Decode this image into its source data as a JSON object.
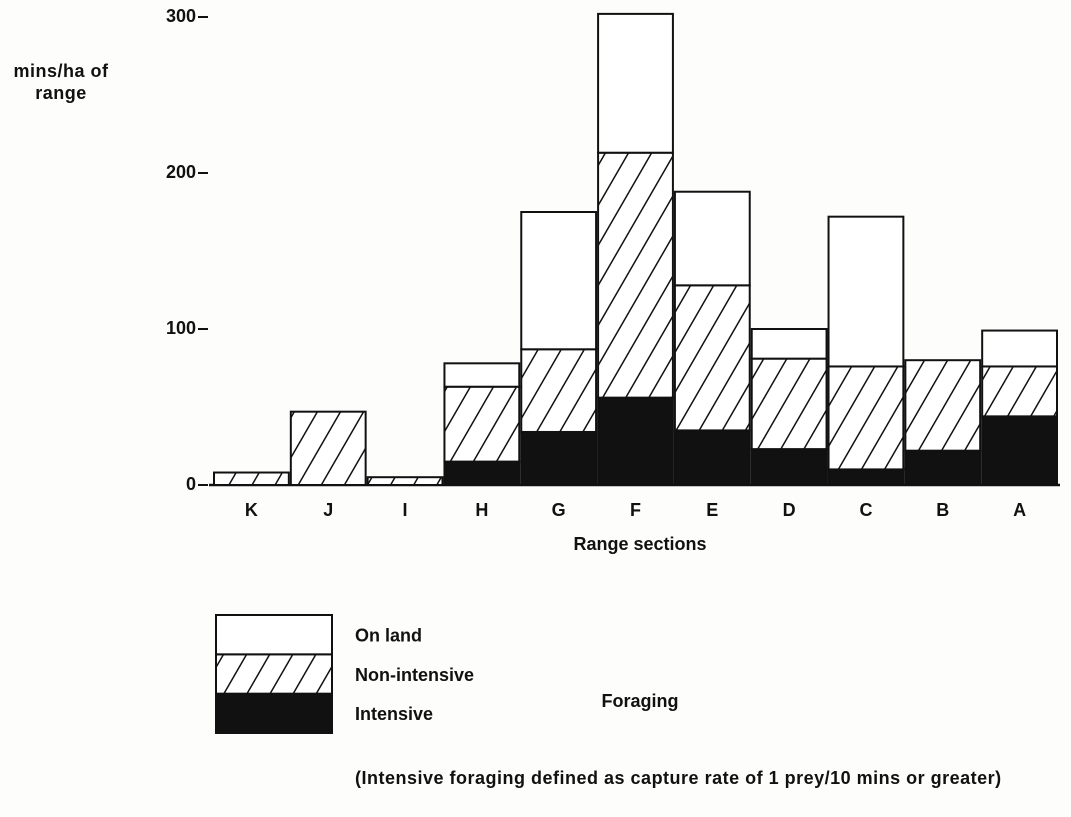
{
  "chart_data": {
    "type": "stacked_bar",
    "ylabel": "mins/ha of range",
    "xlabel": "Range sections",
    "categories": [
      "K",
      "J",
      "I",
      "H",
      "G",
      "F",
      "E",
      "D",
      "C",
      "B",
      "A"
    ],
    "series": [
      {
        "name": "Intensive",
        "color": "#111111",
        "hatch": false,
        "values": [
          0,
          0,
          0,
          15,
          34,
          56,
          35,
          23,
          10,
          22,
          44
        ]
      },
      {
        "name": "Non-intensive",
        "color": "#ffffff",
        "hatch": true,
        "values": [
          8,
          47,
          5,
          48,
          53,
          157,
          93,
          58,
          66,
          58,
          32
        ]
      },
      {
        "name": "On land",
        "color": "#ffffff",
        "hatch": false,
        "values": [
          0,
          0,
          0,
          15,
          88,
          89,
          60,
          19,
          96,
          0,
          23
        ]
      }
    ],
    "legend_title": "Foraging",
    "note": "(Intensive foraging defined as capture rate of 1 prey/10 mins or greater)",
    "ylim": [
      0,
      300
    ],
    "yticks": [
      0,
      100,
      200,
      300
    ],
    "grid": false
  }
}
